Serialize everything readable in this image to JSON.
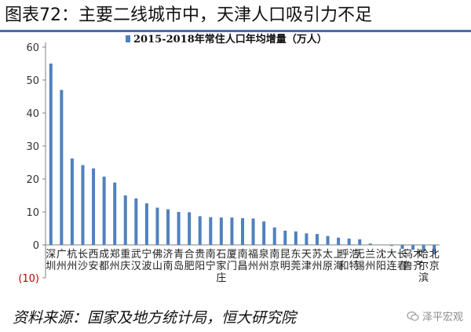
{
  "figure_title": "图表72：主要二线城市中，天津人口吸引力不足",
  "source": "资料来源：国家及地方统计局，恒大研究院",
  "watermark": "泽平宏观",
  "chart_data": {
    "type": "bar",
    "legend": "2015-2018年常住人口年均增量（万人）",
    "legend_position": "top-center",
    "ylim": [
      -10,
      60
    ],
    "yticks": [
      -10,
      0,
      10,
      20,
      30,
      40,
      50,
      60
    ],
    "ytick_labels": [
      "(10)",
      "0",
      "10",
      "20",
      "30",
      "40",
      "50",
      "60"
    ],
    "grid": false,
    "series_color": "#4f81bd",
    "negative_tick_color": "#c00000",
    "categories": [
      "深圳",
      "广州",
      "杭州",
      "长沙",
      "西安",
      "成都",
      "郑州",
      "重庆",
      "武汉",
      "宁波",
      "佛山",
      "济南",
      "青岛",
      "合肥",
      "贵阳",
      "南宁",
      "石家庄",
      "厦门",
      "南昌",
      "福州",
      "泉州",
      "南京",
      "昆明",
      "东莞",
      "天津",
      "苏州",
      "太原",
      "上海",
      "呼和浩特",
      "无锡",
      "兰州",
      "沈阳",
      "大连",
      "长春",
      "乌鲁木齐",
      "哈尔滨",
      "北京"
    ],
    "values": [
      55.0,
      47.0,
      26.2,
      24.2,
      23.2,
      20.7,
      18.9,
      15.0,
      14.1,
      12.6,
      11.3,
      10.8,
      10.0,
      9.9,
      8.7,
      8.4,
      8.3,
      8.3,
      8.1,
      8.0,
      7.1,
      5.3,
      4.3,
      4.1,
      3.5,
      3.3,
      2.7,
      2.2,
      1.9,
      1.7,
      0.4,
      0.0,
      -0.3,
      -1.2,
      -1.5,
      -1.9,
      -2.9
    ]
  }
}
